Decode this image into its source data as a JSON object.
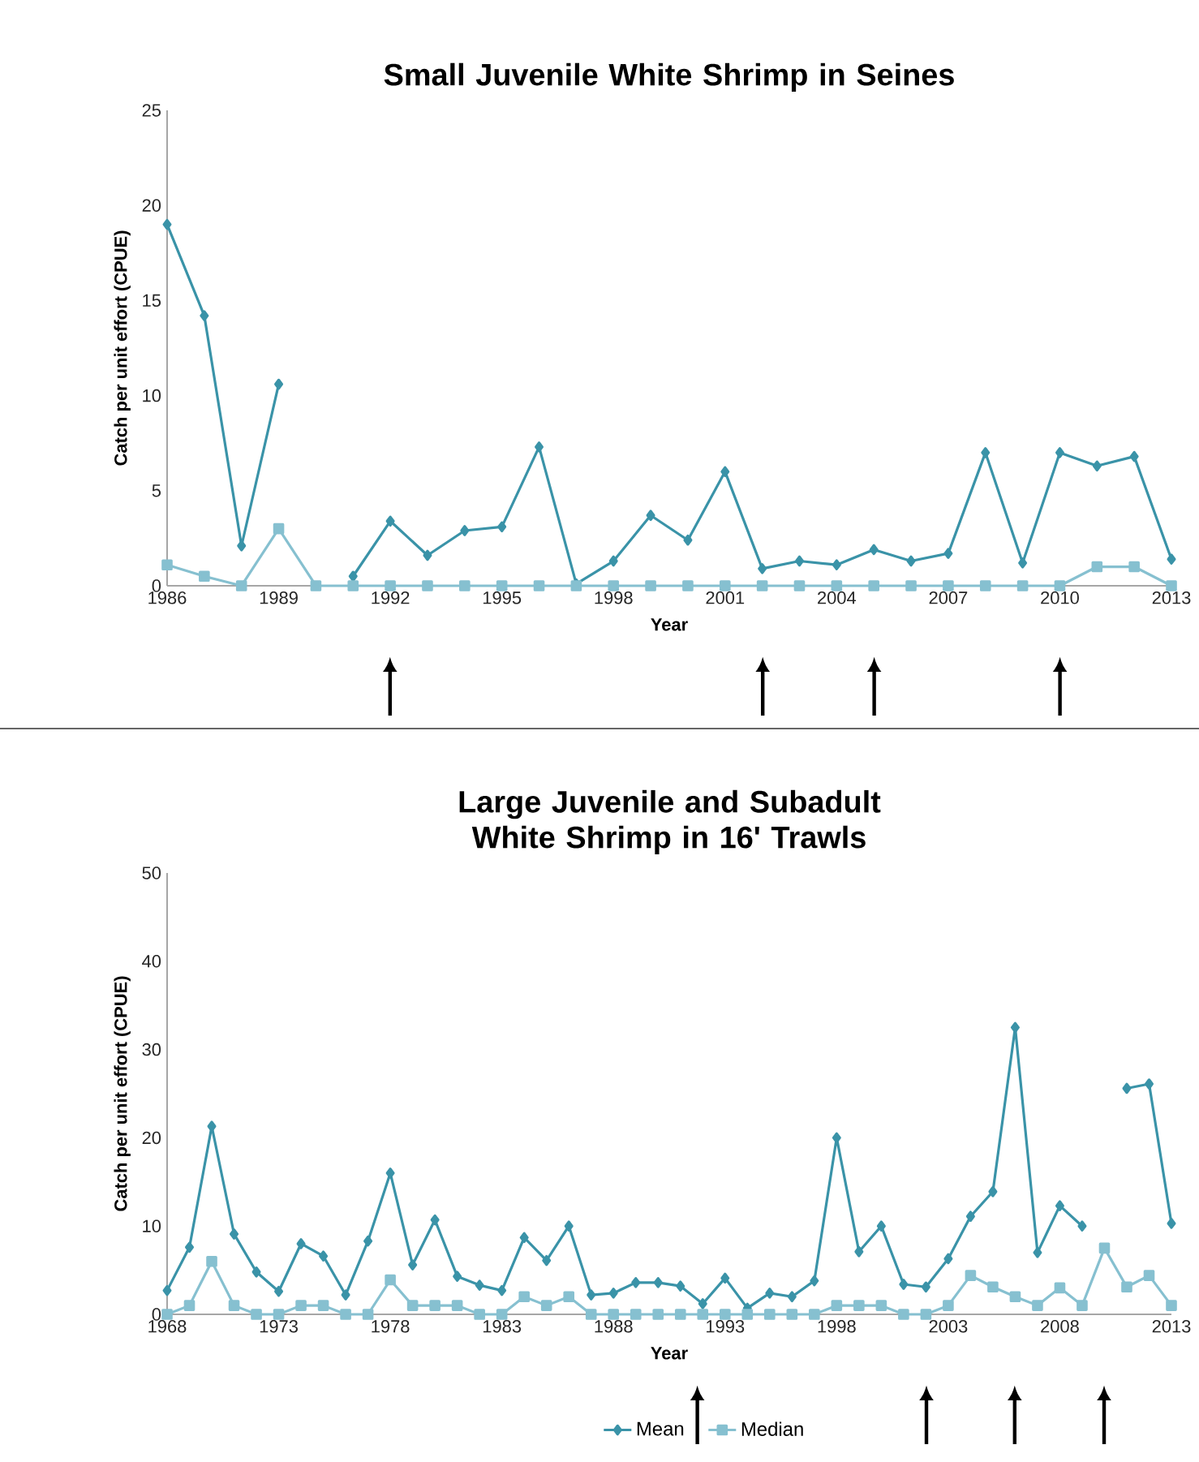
{
  "chart_data": [
    {
      "type": "line",
      "title": "Small Juvenile White Shrimp in Seines",
      "xlabel": "Year",
      "ylabel": "Catch per unit effort (CPUE)",
      "x": [
        1986,
        1987,
        1988,
        1989,
        1990,
        1991,
        1992,
        1993,
        1994,
        1995,
        1996,
        1997,
        1998,
        1999,
        2000,
        2001,
        2002,
        2003,
        2004,
        2005,
        2006,
        2007,
        2008,
        2009,
        2010,
        2011,
        2012,
        2013
      ],
      "series": [
        {
          "color": "#3a93a8",
          "marker": "diamond",
          "values": [
            19.0,
            14.2,
            2.1,
            10.6,
            null,
            0.5,
            3.4,
            1.6,
            2.9,
            3.1,
            7.3,
            0.1,
            1.3,
            3.7,
            2.4,
            6.0,
            0.9,
            1.3,
            1.1,
            1.9,
            1.3,
            1.7,
            7.0,
            1.2,
            7.0,
            6.3,
            6.8,
            1.4
          ]
        },
        {
          "color": "#86c0d0",
          "marker": "square",
          "values": [
            1.1,
            0.5,
            0,
            3.0,
            0,
            0,
            0,
            0,
            0,
            0,
            0,
            0,
            0,
            0,
            0,
            0,
            0,
            0,
            0,
            0,
            0,
            0,
            0,
            0,
            0,
            1.0,
            1.0,
            0
          ]
        }
      ],
      "xlim": [
        1986,
        2013
      ],
      "xticks": [
        1986,
        1989,
        1992,
        1995,
        1998,
        2001,
        2004,
        2007,
        2010,
        2013
      ],
      "ylim": [
        0,
        25
      ],
      "yticks": [
        0,
        5,
        10,
        15,
        20,
        25
      ],
      "grid": false,
      "legend": false
    },
    {
      "type": "line",
      "title": "Large Juvenile and Subadult White Shrimp in 16' Trawls",
      "xlabel": "Year",
      "ylabel": "Catch per unit effort (CPUE)",
      "x": [
        1968,
        1969,
        1970,
        1971,
        1972,
        1973,
        1974,
        1975,
        1976,
        1977,
        1978,
        1979,
        1980,
        1981,
        1982,
        1983,
        1984,
        1985,
        1986,
        1987,
        1988,
        1989,
        1990,
        1991,
        1992,
        1993,
        1994,
        1995,
        1996,
        1997,
        1998,
        1999,
        2000,
        2001,
        2002,
        2003,
        2004,
        2005,
        2006,
        2007,
        2008,
        2009,
        2010,
        2011,
        2012,
        2013
      ],
      "series": [
        {
          "name": "Mean",
          "color": "#3a93a8",
          "marker": "diamond",
          "values": [
            2.7,
            7.6,
            21.3,
            9.1,
            4.8,
            2.6,
            8.0,
            6.6,
            2.2,
            8.3,
            16.0,
            5.6,
            10.7,
            4.3,
            3.3,
            2.7,
            8.7,
            6.1,
            10.0,
            2.2,
            2.4,
            3.6,
            3.6,
            3.2,
            1.2,
            4.1,
            0.7,
            2.4,
            2.0,
            3.8,
            20.0,
            7.1,
            10.0,
            3.4,
            3.1,
            6.3,
            11.1,
            13.9,
            32.5,
            7.0,
            12.3,
            10.0,
            null,
            25.6,
            26.1,
            10.3
          ]
        },
        {
          "name": "Median",
          "color": "#86c0d0",
          "marker": "square",
          "values": [
            0,
            1.0,
            6.0,
            1.0,
            0,
            0,
            1.0,
            1.0,
            0,
            0,
            3.9,
            1.0,
            1.0,
            1.0,
            0,
            0,
            2.0,
            1.0,
            2.0,
            0,
            0,
            0,
            0,
            0,
            0,
            0,
            0,
            0,
            0,
            0,
            1.0,
            1.0,
            1.0,
            0,
            0,
            1.0,
            4.4,
            3.1,
            2.0,
            1.0,
            3.0,
            1.0,
            7.5,
            3.1,
            4.4,
            1.0
          ]
        }
      ],
      "xlim": [
        1968,
        2013
      ],
      "xticks": [
        1968,
        1973,
        1978,
        1983,
        1988,
        1993,
        1998,
        2003,
        2008,
        2013
      ],
      "ylim": [
        0,
        50
      ],
      "yticks": [
        0,
        10,
        20,
        30,
        40,
        50
      ],
      "grid": false,
      "legend": "bottom"
    }
  ]
}
